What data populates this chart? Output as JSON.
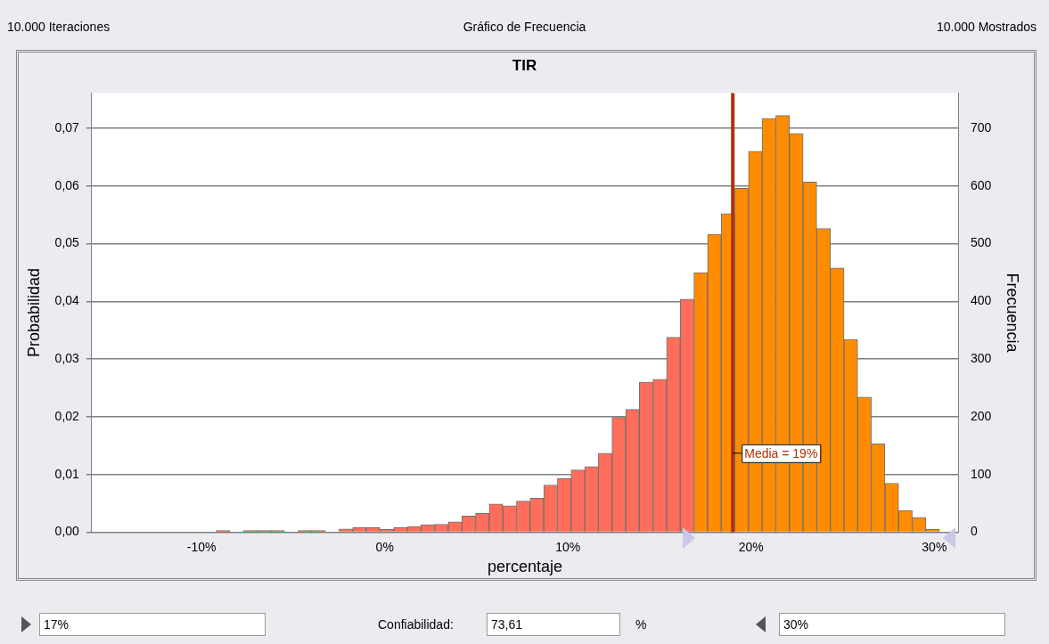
{
  "chart_data": {
    "type": "histogram",
    "title": "TIR",
    "xlabel": "percentaje",
    "ylabel": "Probabilidad",
    "y2label": "Frecuencia",
    "bins": [
      -9.2,
      -8.455,
      -7.71,
      -6.965,
      -6.22,
      -5.475,
      -4.73,
      -3.985,
      -3.24,
      -2.495,
      -1.75,
      -1.005,
      -0.26,
      0.485,
      1.23,
      1.975,
      2.72,
      3.465,
      4.21,
      4.955,
      5.7,
      6.445,
      7.19,
      7.935,
      8.68,
      9.425,
      10.17,
      10.915,
      11.66,
      12.405,
      13.15,
      13.895,
      14.64,
      15.385,
      16.13,
      16.875,
      17.62,
      18.365,
      19.11,
      19.855,
      20.6,
      21.345,
      22.09,
      22.835,
      23.58,
      24.325,
      25.07,
      25.815,
      26.56,
      27.305,
      28.05,
      28.795,
      29.54,
      30.285
    ],
    "values": [
      0.0003,
      0,
      0.0003,
      0.0003,
      0.0003,
      0,
      0.0003,
      0.0003,
      0,
      0.0006,
      0.0008,
      0.0008,
      0.0005,
      0.0008,
      0.001,
      0.0013,
      0.0014,
      0.0018,
      0.0028,
      0.0033,
      0.0049,
      0.0046,
      0.0054,
      0.0059,
      0.0082,
      0.0093,
      0.0108,
      0.0114,
      0.0137,
      0.0199,
      0.0213,
      0.026,
      0.0265,
      0.0338,
      0.0404,
      0.045,
      0.0516,
      0.0552,
      0.0596,
      0.066,
      0.0717,
      0.0722,
      0.0691,
      0.0607,
      0.0526,
      0.0458,
      0.0334,
      0.0234,
      0.0153,
      0.0085,
      0.0038,
      0.0026,
      0.0005
    ],
    "colors": [
      "#ff6e5a",
      "#ff6e5a",
      "#ff6e5a",
      "#ff6e5a",
      "#ff6e5a",
      "#ff6e5a",
      "#ff6e5a",
      "#ff6e5a",
      "#ff6e5a",
      "#ff6e5a",
      "#ff6e5a",
      "#ff6e5a",
      "#ff6e5a",
      "#ff6e5a",
      "#ff6e5a",
      "#ff6e5a",
      "#ff6e5a",
      "#ff6e5a",
      "#ff6e5a",
      "#ff6e5a",
      "#ff6e5a",
      "#ff6e5a",
      "#ff6e5a",
      "#ff6e5a",
      "#ff6e5a",
      "#ff6e5a",
      "#ff6e5a",
      "#ff6e5a",
      "#ff6e5a",
      "#ff6e5a",
      "#ff6e5a",
      "#ff6e5a",
      "#ff6e5a",
      "#ff6e5a",
      "#ff6e5a",
      "#ff8c00",
      "#ff8c00",
      "#ff8c00",
      "#ff8c00",
      "#ff8c00",
      "#ff8c00",
      "#ff8c00",
      "#ff8c00",
      "#ff8c00",
      "#ff8c00",
      "#ff8c00",
      "#ff8c00",
      "#ff8c00",
      "#ff8c00",
      "#ff8c00",
      "#ff8c00",
      "#ff8c00",
      "#ff8c00"
    ],
    "xlim": [
      -16,
      31.3
    ],
    "xticks": [
      {
        "value": -10,
        "label": "-10%"
      },
      {
        "value": 0,
        "label": "0%"
      },
      {
        "value": 10,
        "label": "10%"
      },
      {
        "value": 20,
        "label": "20%"
      },
      {
        "value": 30,
        "label": "30%"
      }
    ],
    "ylim": [
      0,
      0.0761
    ],
    "yticks": [
      {
        "value": 0,
        "label": "0,00"
      },
      {
        "value": 0.01,
        "label": "0,01"
      },
      {
        "value": 0.02,
        "label": "0,02"
      },
      {
        "value": 0.03,
        "label": "0,03"
      },
      {
        "value": 0.04,
        "label": "0,04"
      },
      {
        "value": 0.05,
        "label": "0,05"
      },
      {
        "value": 0.06,
        "label": "0,06"
      },
      {
        "value": 0.07,
        "label": "0,07"
      }
    ],
    "y2lim": [
      0,
      761
    ],
    "y2ticks": [
      0,
      100,
      200,
      300,
      400,
      500,
      600,
      700
    ],
    "grid": "y",
    "legend": false,
    "ref_lines": [
      {
        "axis": "x",
        "value": 19,
        "label": "Media = 19%",
        "color": "#b03000"
      }
    ],
    "annotations": [
      "10.000 Iteraciones",
      "Gráfico de Frecuencia",
      "10.000 Mostrados",
      "17%",
      "Confiabilidad:",
      "73,61",
      "%",
      "30%"
    ]
  }
}
